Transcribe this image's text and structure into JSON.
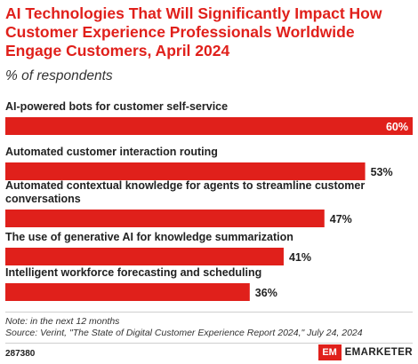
{
  "header": {
    "title": "AI Technologies That Will Significantly Impact How Customer Experience Professionals Worldwide Engage Customers, April 2024",
    "subtitle": "% of respondents"
  },
  "chart_data": {
    "type": "bar",
    "orientation": "horizontal",
    "categories": [
      "AI-powered bots for customer self-service",
      "Automated customer interaction routing",
      "Automated contextual knowledge for agents to streamline customer conversations",
      "The use of generative AI for knowledge summarization",
      "Intelligent workforce forecasting and scheduling"
    ],
    "category_lines": [
      [
        "AI-powered bots for customer self-service"
      ],
      [
        "Automated customer interaction routing"
      ],
      [
        "Automated contextual knowledge for agents to streamline customer",
        "conversations"
      ],
      [
        "The use of generative AI for knowledge summarization"
      ],
      [
        "Intelligent workforce forecasting and scheduling"
      ]
    ],
    "values": [
      60,
      53,
      47,
      41,
      36
    ],
    "value_labels": [
      "60%",
      "53%",
      "47%",
      "41%",
      "36%"
    ],
    "xlim": [
      0,
      60
    ],
    "bar_color": "#e0201b",
    "grid": false,
    "legend": "none"
  },
  "footer": {
    "note": "Note: in the next 12 months",
    "source": "Source: Verint, \"The State of Digital Customer Experience Report 2024,\" July 24, 2024",
    "chart_id": "287380",
    "brand_mark": "EM",
    "brand_name": "EMARKETER",
    "brand_color": "#e0201b"
  }
}
